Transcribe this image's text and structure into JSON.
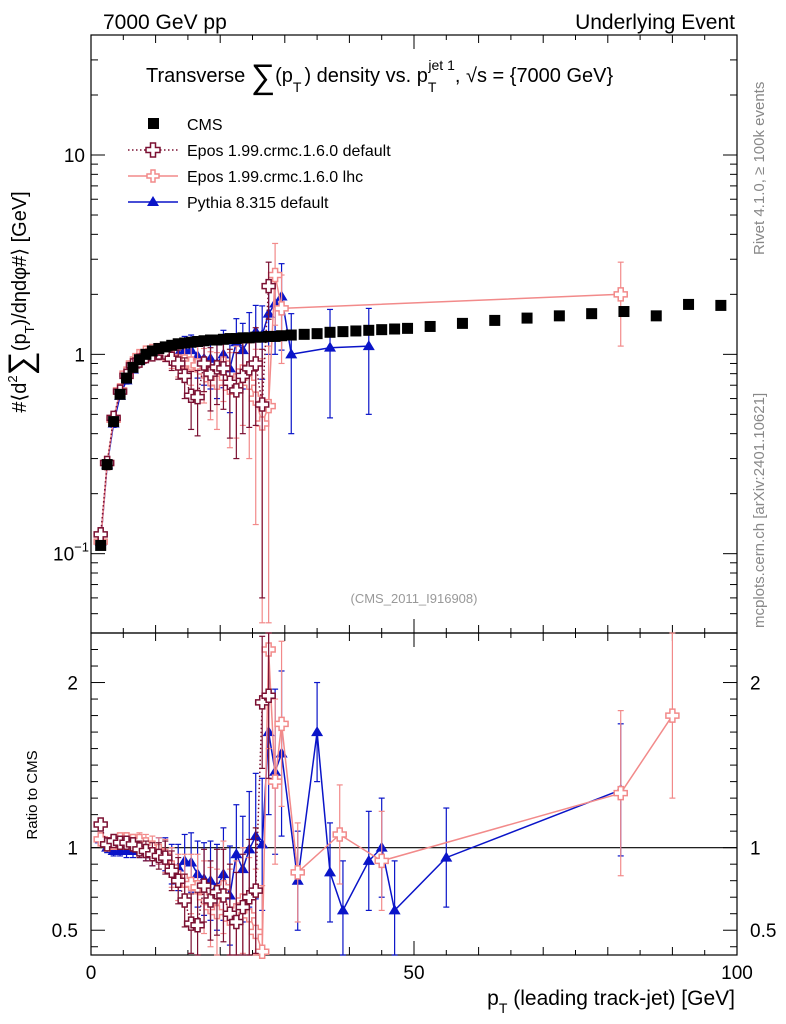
{
  "header": {
    "left": "7000 GeV pp",
    "right": "Underlying Event"
  },
  "side_labels": {
    "right_top": "Rivet 4.1.0, ≥ 100k events",
    "right_bottom": "mcplots.cern.ch [arXiv:2401.10621]"
  },
  "chart_data": [
    {
      "panel": "main",
      "type": "scatter",
      "title_parts": {
        "t1": "Transverse ",
        "sum": "∑",
        "t2": "(p",
        "t2sub": "T",
        "t3": ") density vs. p",
        "t3sub": "T",
        "t3sup": "jet 1",
        "t4": ", √s = {7000 GeV}"
      },
      "ylabel_parts": {
        "a": "#⟨d",
        "asup": "2",
        "sum": "∑",
        "b": "(p",
        "bsub": "T",
        "c": ")/dηdφ#⟩ [GeV]"
      },
      "watermark": "(CMS_2011_I916908)",
      "yscale": "log",
      "xlim": [
        0,
        100
      ],
      "ylim": [
        0.04,
        40
      ],
      "yticks": [
        {
          "v": 0.1,
          "base": "10",
          "exp": "−1"
        },
        {
          "v": 1,
          "base": "1",
          "exp": ""
        },
        {
          "v": 10,
          "base": "10",
          "exp": ""
        }
      ],
      "legend_position": "top-left",
      "series": [
        {
          "name": "CMS",
          "color": "#000000",
          "marker": "square",
          "line": "none",
          "x": [
            1.5,
            2.5,
            3.5,
            4.5,
            5.5,
            6.5,
            7.5,
            8.5,
            9.5,
            10.5,
            11.5,
            12.5,
            13.5,
            14.5,
            15.5,
            16.5,
            17.5,
            18.5,
            19.5,
            20.5,
            21.5,
            22.5,
            23.5,
            24.5,
            25.5,
            26.5,
            27.5,
            28.5,
            29.5,
            31,
            33,
            35,
            37,
            39,
            41,
            43,
            45,
            47,
            49,
            52.5,
            57.5,
            62.5,
            67.5,
            72.5,
            77.5,
            82.5,
            87.5,
            92.5,
            97.5
          ],
          "y": [
            0.11,
            0.28,
            0.46,
            0.63,
            0.76,
            0.86,
            0.94,
            1.0,
            1.04,
            1.07,
            1.09,
            1.11,
            1.13,
            1.14,
            1.15,
            1.16,
            1.17,
            1.18,
            1.18,
            1.19,
            1.2,
            1.2,
            1.21,
            1.21,
            1.22,
            1.22,
            1.23,
            1.23,
            1.24,
            1.25,
            1.26,
            1.27,
            1.29,
            1.3,
            1.31,
            1.32,
            1.33,
            1.34,
            1.35,
            1.38,
            1.43,
            1.48,
            1.52,
            1.56,
            1.6,
            1.64,
            1.56,
            1.78,
            1.76
          ]
        },
        {
          "name": "Epos 1.99.crmc.1.6.0 default",
          "color": "#7b1032",
          "marker": "open-cross",
          "line": "dotted",
          "x": [
            1.5,
            2.5,
            3.5,
            4.5,
            5.5,
            6.5,
            7.5,
            8.5,
            9.5,
            10.5,
            11.5,
            12.5,
            13.5,
            14.5,
            15.5,
            16.5,
            17.5,
            18.5,
            19.5,
            20.5,
            21.5,
            22.5,
            23.5,
            24.5,
            25.5,
            26.5,
            27.5
          ],
          "y": [
            0.125,
            0.285,
            0.48,
            0.65,
            0.78,
            0.88,
            0.93,
            0.98,
            1.0,
            1.02,
            1.02,
            0.95,
            0.9,
            0.78,
            0.62,
            0.61,
            0.9,
            0.8,
            0.86,
            0.85,
            0.72,
            0.66,
            0.78,
            0.85,
            0.9,
            0.56,
            2.2
          ],
          "err": [
            0.01,
            0.01,
            0.02,
            0.02,
            0.03,
            0.03,
            0.04,
            0.05,
            0.06,
            0.08,
            0.1,
            0.12,
            0.15,
            0.18,
            0.2,
            0.22,
            0.25,
            0.28,
            0.3,
            0.32,
            0.34,
            0.36,
            0.38,
            0.42,
            0.46,
            0.5,
            0.7
          ]
        },
        {
          "name": "Epos 1.99.crmc.1.6.0 lhc",
          "color": "#f28a8a",
          "marker": "open-cross",
          "line": "solid",
          "x": [
            1.5,
            2.5,
            3.5,
            4.5,
            5.5,
            6.5,
            7.5,
            8.5,
            9.5,
            10.5,
            11.5,
            12.5,
            13.5,
            14.5,
            15.5,
            16.5,
            17.5,
            18.5,
            19.5,
            20.5,
            21.5,
            22.5,
            23.5,
            24.5,
            25.5,
            26.5,
            27.5,
            28.5,
            29.5,
            82
          ],
          "y": [
            0.115,
            0.285,
            0.47,
            0.66,
            0.8,
            0.9,
            0.98,
            1.02,
            1.04,
            1.05,
            1.03,
            0.97,
            0.92,
            0.92,
            0.9,
            0.88,
            0.82,
            0.75,
            0.72,
            0.9,
            0.68,
            0.74,
            0.82,
            0.72,
            0.6,
            0.45,
            0.55,
            2.5,
            1.7,
            2.0
          ],
          "err": [
            0.01,
            0.01,
            0.02,
            0.02,
            0.03,
            0.03,
            0.04,
            0.05,
            0.06,
            0.08,
            0.1,
            0.12,
            0.15,
            0.18,
            0.2,
            0.22,
            0.25,
            0.28,
            0.3,
            0.32,
            0.34,
            0.36,
            0.38,
            0.42,
            0.46,
            0.5,
            0.55,
            1.1,
            0.8,
            0.9
          ]
        },
        {
          "name": "Pythia 8.315 default",
          "color": "#0a14c8",
          "marker": "triangle",
          "line": "solid",
          "x": [
            1.5,
            2.5,
            3.5,
            4.5,
            5.5,
            6.5,
            7.5,
            8.5,
            9.5,
            10.5,
            11.5,
            12.5,
            13.5,
            14.5,
            15.5,
            16.5,
            17.5,
            18.5,
            19.5,
            20.5,
            21.5,
            22.5,
            23.5,
            24.5,
            25.5,
            26.5,
            27.5,
            28.5,
            29.5,
            31,
            37,
            43
          ],
          "y": [
            0.115,
            0.28,
            0.45,
            0.62,
            0.74,
            0.84,
            0.93,
            0.98,
            1.0,
            1.05,
            1.05,
            1.0,
            1.0,
            1.05,
            1.05,
            0.98,
            0.95,
            0.95,
            0.9,
            1.0,
            0.85,
            1.15,
            1.05,
            1.2,
            1.3,
            1.25,
            1.6,
            1.8,
            1.95,
            1.0,
            1.08,
            1.1
          ],
          "err": [
            0.01,
            0.01,
            0.02,
            0.02,
            0.03,
            0.03,
            0.04,
            0.05,
            0.06,
            0.08,
            0.1,
            0.12,
            0.15,
            0.18,
            0.2,
            0.22,
            0.25,
            0.28,
            0.3,
            0.32,
            0.34,
            0.36,
            0.38,
            0.42,
            0.46,
            0.5,
            0.6,
            0.8,
            0.9,
            0.6,
            0.6,
            0.6
          ]
        }
      ]
    },
    {
      "panel": "ratio",
      "type": "line",
      "ylabel": "Ratio to CMS",
      "xlabel_parts": {
        "a": "p",
        "sub": "T",
        "b": " (leading track-jet) [GeV]"
      },
      "xlim": [
        0,
        100
      ],
      "ylim": [
        0.35,
        2.3
      ],
      "xticks": [
        0,
        50,
        100
      ],
      "yticks": [
        0.5,
        1,
        2
      ],
      "reference_line": 1,
      "series": [
        {
          "name": "Epos 1.99.crmc.1.6.0 default",
          "color": "#7b1032",
          "marker": "open-cross",
          "line": "dotted",
          "x": [
            1.5,
            2.5,
            3.5,
            4.5,
            5.5,
            6.5,
            7.5,
            8.5,
            9.5,
            10.5,
            11.5,
            12.5,
            13.5,
            14.5,
            15.5,
            16.5,
            17.5,
            18.5,
            19.5,
            20.5,
            21.5,
            22.5,
            23.5,
            24.5,
            25.5,
            26.5,
            27.5
          ],
          "y": [
            1.14,
            1.02,
            1.04,
            1.03,
            1.03,
            1.02,
            0.99,
            0.98,
            0.96,
            0.95,
            0.94,
            0.86,
            0.8,
            0.68,
            0.54,
            0.53,
            0.77,
            0.68,
            0.73,
            0.71,
            0.6,
            0.55,
            0.64,
            0.7,
            0.74,
            1.88,
            1.92
          ],
          "err": [
            0.03,
            0.03,
            0.03,
            0.03,
            0.04,
            0.04,
            0.05,
            0.06,
            0.07,
            0.08,
            0.1,
            0.12,
            0.14,
            0.16,
            0.18,
            0.2,
            0.22,
            0.24,
            0.26,
            0.28,
            0.3,
            0.3,
            0.32,
            0.35,
            0.38,
            0.4,
            0.5
          ]
        },
        {
          "name": "Epos 1.99.crmc.1.6.0 lhc",
          "color": "#f28a8a",
          "marker": "open-cross",
          "line": "solid",
          "x": [
            1.5,
            2.5,
            3.5,
            4.5,
            5.5,
            6.5,
            7.5,
            8.5,
            9.5,
            10.5,
            11.5,
            12.5,
            13.5,
            14.5,
            15.5,
            16.5,
            17.5,
            18.5,
            19.5,
            20.5,
            21.5,
            22.5,
            23.5,
            24.5,
            25.5,
            26.5,
            27.5,
            28.5,
            29.5,
            32,
            38.5,
            45,
            82,
            90
          ],
          "y": [
            1.05,
            1.02,
            1.03,
            1.05,
            1.05,
            1.04,
            1.04,
            1.02,
            1.0,
            0.98,
            0.95,
            0.88,
            0.82,
            0.8,
            0.78,
            0.76,
            0.7,
            0.64,
            0.61,
            0.76,
            0.57,
            0.62,
            0.68,
            0.59,
            0.49,
            0.37,
            2.2,
            1.4,
            1.75,
            0.85,
            1.08,
            0.92,
            1.33,
            1.8
          ],
          "err": [
            0.03,
            0.03,
            0.03,
            0.03,
            0.04,
            0.04,
            0.05,
            0.06,
            0.07,
            0.08,
            0.1,
            0.12,
            0.14,
            0.16,
            0.18,
            0.2,
            0.22,
            0.24,
            0.26,
            0.28,
            0.3,
            0.3,
            0.32,
            0.35,
            0.38,
            0.4,
            0.6,
            0.5,
            0.5,
            0.3,
            0.3,
            0.3,
            0.5,
            0.5
          ]
        },
        {
          "name": "Pythia 8.315 default",
          "color": "#0a14c8",
          "marker": "triangle",
          "line": "solid",
          "x": [
            1.5,
            2.5,
            3.5,
            4.5,
            5.5,
            6.5,
            7.5,
            8.5,
            9.5,
            10.5,
            11.5,
            12.5,
            13.5,
            14.5,
            15.5,
            16.5,
            17.5,
            18.5,
            19.5,
            20.5,
            21.5,
            22.5,
            23.5,
            24.5,
            25.5,
            26.5,
            27.5,
            28.5,
            29.5,
            32,
            35,
            37,
            39,
            43,
            45,
            47,
            55,
            82
          ],
          "y": [
            1.05,
            1.0,
            0.98,
            0.98,
            0.98,
            0.98,
            0.99,
            0.98,
            0.96,
            0.98,
            0.96,
            0.9,
            0.88,
            0.92,
            0.91,
            0.84,
            0.81,
            0.8,
            0.76,
            0.84,
            0.71,
            0.96,
            0.87,
            0.99,
            1.07,
            1.02,
            1.7,
            1.46,
            1.57,
            0.8,
            1.7,
            0.85,
            0.62,
            0.92,
            1.0,
            0.62,
            0.94,
            1.35
          ],
          "err": [
            0.03,
            0.03,
            0.03,
            0.03,
            0.04,
            0.04,
            0.05,
            0.06,
            0.07,
            0.08,
            0.1,
            0.12,
            0.14,
            0.16,
            0.18,
            0.2,
            0.22,
            0.24,
            0.26,
            0.28,
            0.3,
            0.3,
            0.32,
            0.35,
            0.38,
            0.4,
            0.5,
            0.5,
            0.5,
            0.3,
            0.3,
            0.3,
            0.3,
            0.3,
            0.3,
            0.3,
            0.3,
            0.4
          ]
        }
      ]
    }
  ]
}
